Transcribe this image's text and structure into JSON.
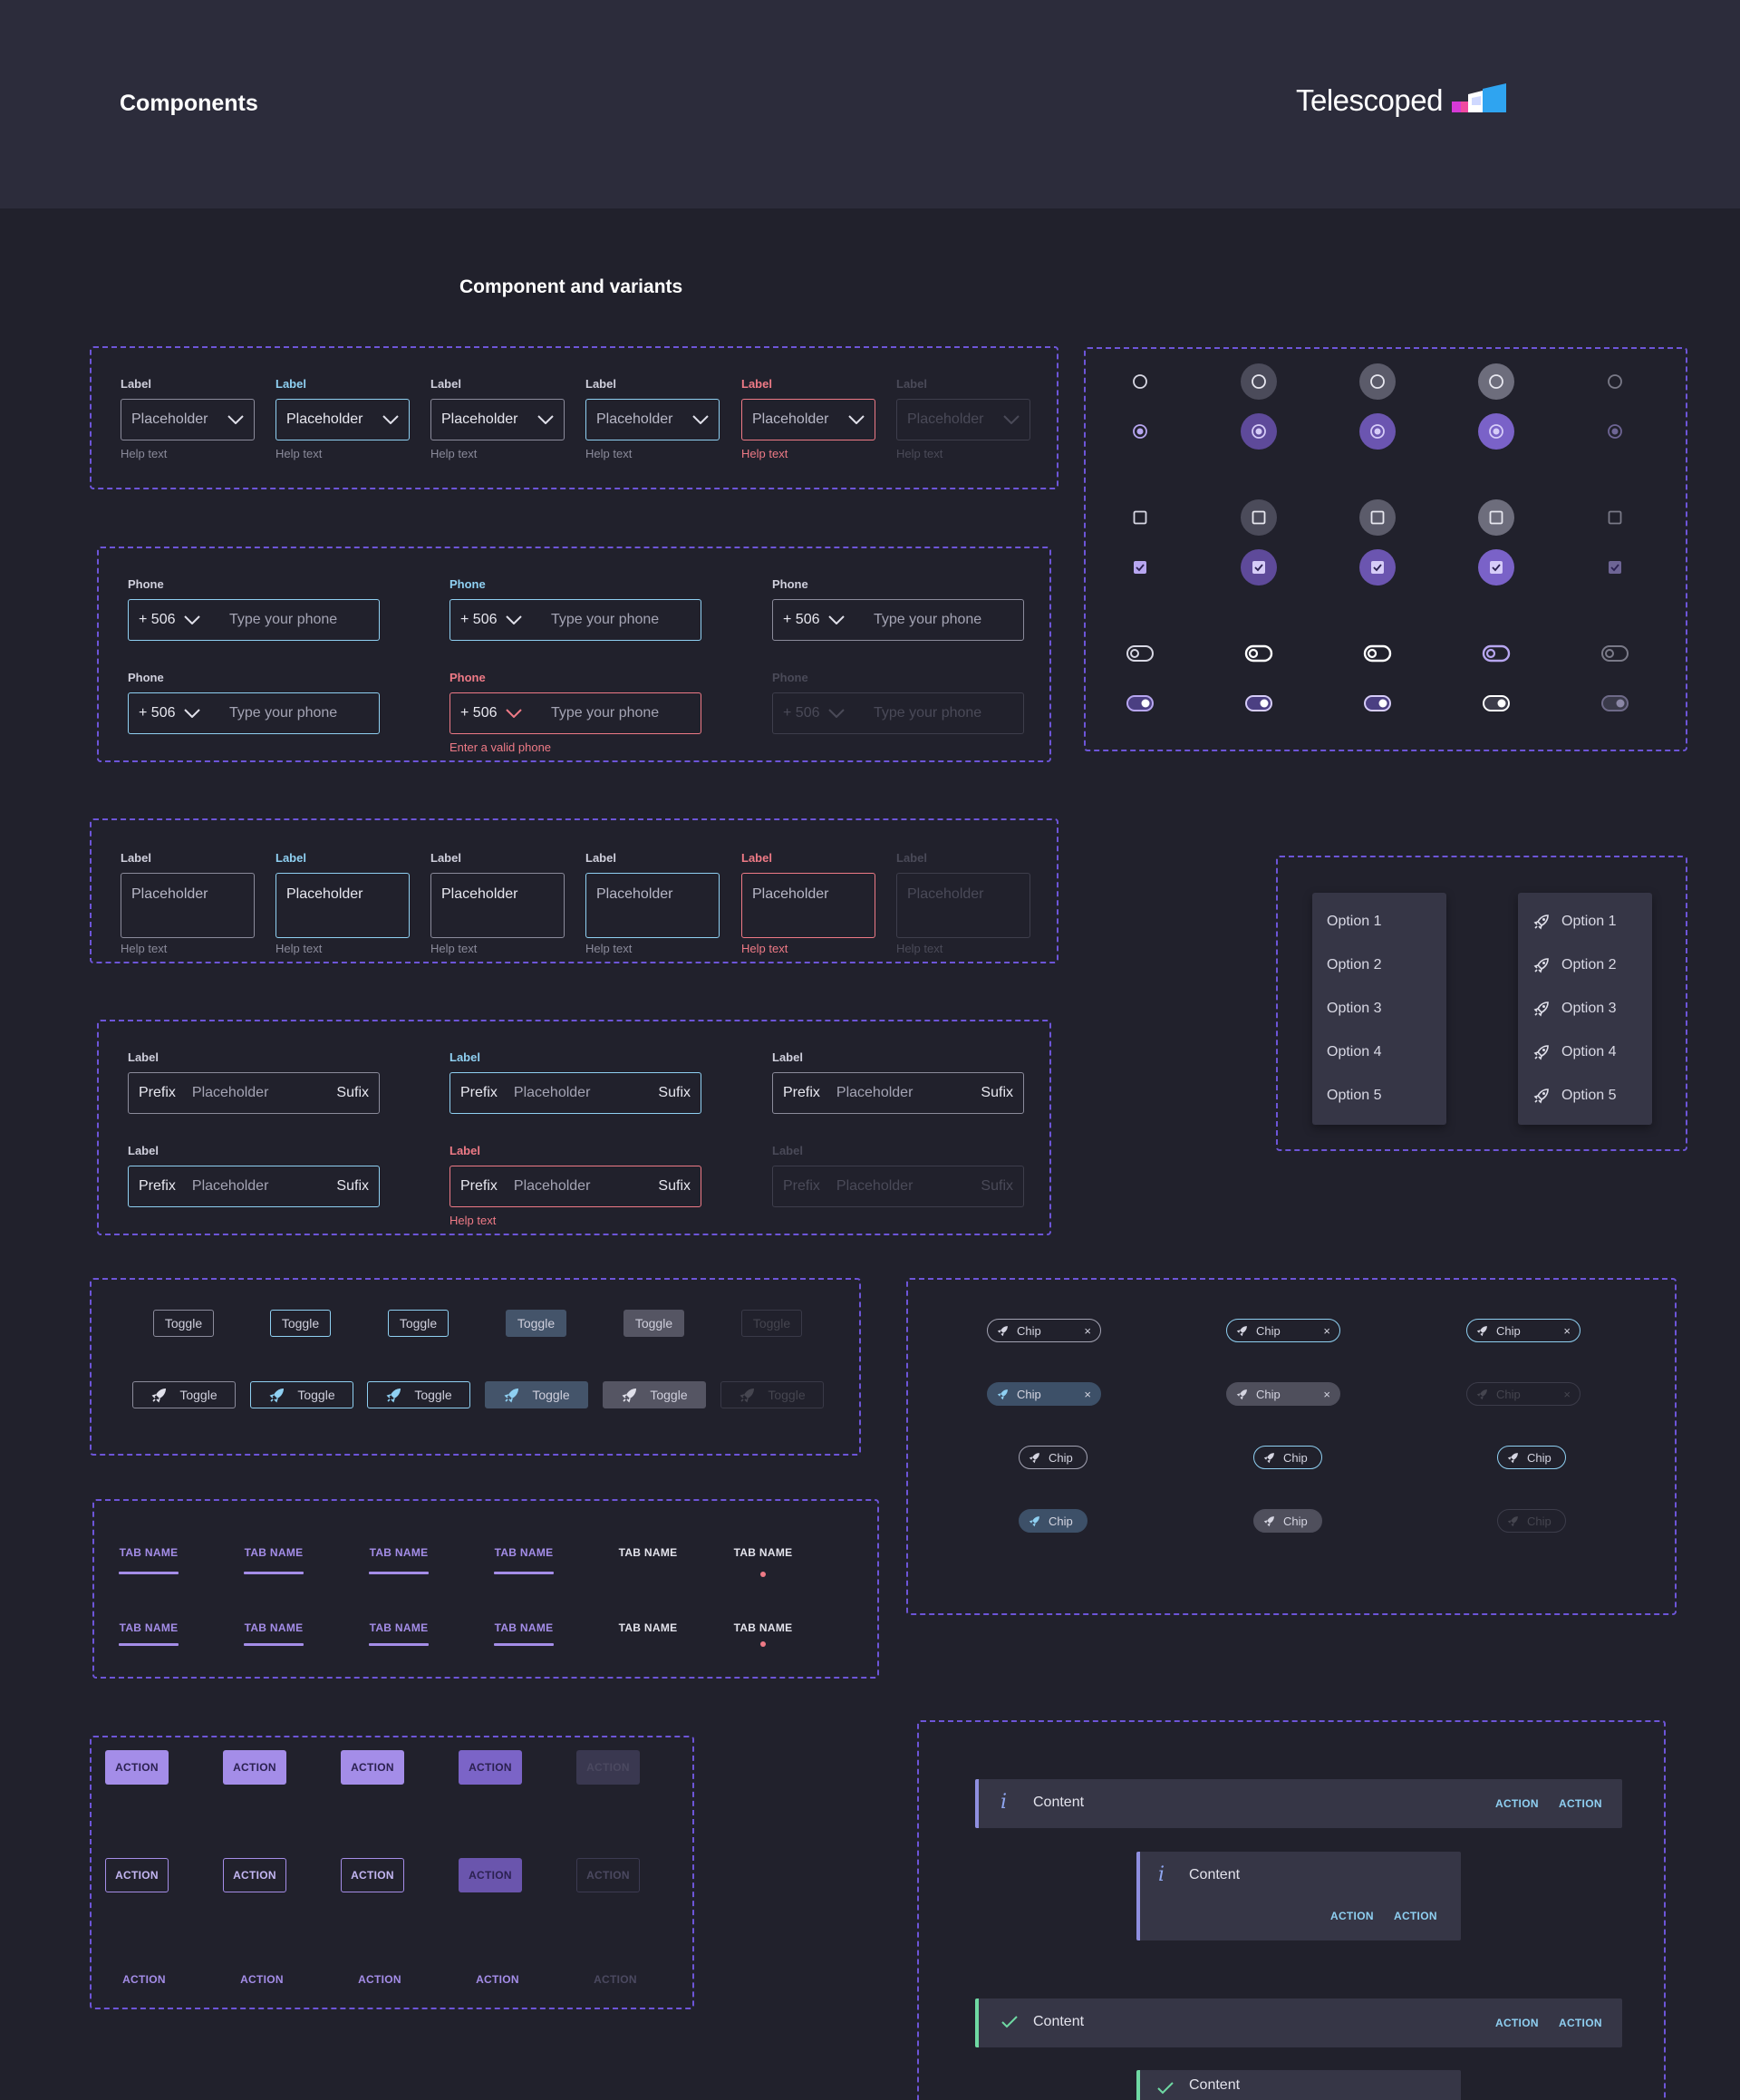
{
  "header": {
    "title": "Components",
    "logo_text": "Telescoped"
  },
  "section": {
    "title": "Component and variants"
  },
  "select_row": [
    {
      "label": "Label",
      "value": "Placeholder",
      "help": "Help text",
      "state": "default"
    },
    {
      "label": "Label",
      "value": "Placeholder",
      "help": "Help text",
      "state": "focus"
    },
    {
      "label": "Label",
      "value": "Placeholder",
      "help": "Help text",
      "state": "filled"
    },
    {
      "label": "Label",
      "value": "Placeholder",
      "help": "Help text",
      "state": "hover"
    },
    {
      "label": "Label",
      "value": "Placeholder",
      "help": "Help text",
      "state": "error"
    },
    {
      "label": "Label",
      "value": "Placeholder",
      "help": "Help text",
      "state": "disabled"
    }
  ],
  "phone_fields": [
    {
      "label": "Phone",
      "code": "+ 506",
      "placeholder": "Type your phone",
      "state": "default"
    },
    {
      "label": "Phone",
      "code": "+ 506",
      "placeholder": "Type your phone",
      "state": "focus"
    },
    {
      "label": "Phone",
      "code": "+ 506",
      "placeholder": "Type your phone",
      "state": "filled"
    },
    {
      "label": "Phone",
      "code": "+ 506",
      "placeholder": "Type your phone",
      "state": "hover"
    },
    {
      "label": "Phone",
      "code": "+ 506",
      "placeholder": "Type your phone",
      "state": "error",
      "error_text": "Enter a valid phone"
    },
    {
      "label": "Phone",
      "code": "+ 506",
      "placeholder": "Type your phone",
      "state": "disabled"
    }
  ],
  "textarea_row": [
    {
      "label": "Label",
      "value": "Placeholder",
      "help": "Help text"
    },
    {
      "label": "Label",
      "value": "Placeholder",
      "help": "Help text"
    },
    {
      "label": "Label",
      "value": "Placeholder",
      "help": "Help text"
    },
    {
      "label": "Label",
      "value": "Placeholder",
      "help": "Help text"
    },
    {
      "label": "Label",
      "value": "Placeholder",
      "help": "Help text"
    },
    {
      "label": "Label",
      "value": "Placeholder",
      "help": "Help text"
    }
  ],
  "affix_fields": [
    {
      "label": "Label",
      "prefix": "Prefix",
      "placeholder": "Placeholder",
      "suffix": "Sufix"
    },
    {
      "label": "Label",
      "prefix": "Prefix",
      "placeholder": "Placeholder",
      "suffix": "Sufix"
    },
    {
      "label": "Label",
      "prefix": "Prefix",
      "placeholder": "Placeholder",
      "suffix": "Sufix"
    },
    {
      "label": "Label",
      "prefix": "Prefix",
      "placeholder": "Placeholder",
      "suffix": "Sufix"
    },
    {
      "label": "Label",
      "prefix": "Prefix",
      "placeholder": "Placeholder",
      "suffix": "Sufix",
      "help": "Help text"
    },
    {
      "label": "Label",
      "prefix": "Prefix",
      "placeholder": "Placeholder",
      "suffix": "Sufix"
    }
  ],
  "menus": {
    "plain": [
      "Option 1",
      "Option 2",
      "Option 3",
      "Option 4",
      "Option 5"
    ],
    "with_icon": [
      "Option 1",
      "Option 2",
      "Option 3",
      "Option 4",
      "Option 5"
    ],
    "icon": "rocket-icon"
  },
  "toggles": {
    "label": "Toggle",
    "icon": "rocket-icon"
  },
  "chips": {
    "label": "Chip",
    "close": "×",
    "icon": "rocket-icon"
  },
  "tabs": {
    "label": "TAB NAME"
  },
  "actions": {
    "label": "ACTION"
  },
  "notifications": {
    "content": "Content",
    "action1": "ACTION",
    "action2": "ACTION",
    "info_icon": "i",
    "success_icon": "checkmark-icon"
  },
  "colors": {
    "background": "#21212c",
    "header": "#2c2c3b",
    "accent_purple": "#a48de8",
    "accent_blue": "#8fd0f2",
    "error": "#ee7a86",
    "success": "#6fd9a3",
    "dashed_border": "#6d55d8"
  }
}
